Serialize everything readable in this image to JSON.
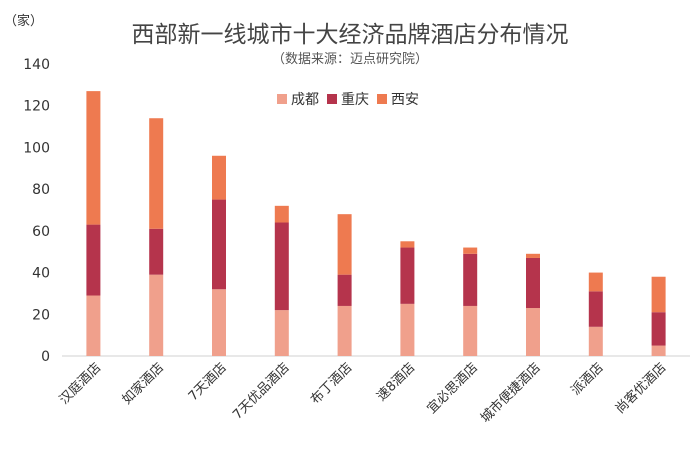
{
  "chart_data": {
    "type": "bar",
    "stacked": true,
    "title": "西部新一线城市十大经济品牌酒店分布情况",
    "subtitle": "（数据来源：迈点研究院）",
    "ylabel": "（家）",
    "xlabel": "",
    "ylim": [
      0,
      140
    ],
    "yticks": [
      0,
      20,
      40,
      60,
      80,
      100,
      120,
      140
    ],
    "grid": false,
    "legend_position": "top-right",
    "categories": [
      "汉庭酒店",
      "如家酒店",
      "7天酒店",
      "7天优品酒店",
      "布丁酒店",
      "速8酒店",
      "宜必思酒店",
      "城市便捷酒店",
      "派酒店",
      "尚客优酒店"
    ],
    "series": [
      {
        "name": "成都",
        "color": "#F0A08C",
        "values": [
          29,
          39,
          32,
          22,
          24,
          25,
          24,
          23,
          14,
          5
        ]
      },
      {
        "name": "重庆",
        "color": "#B5344C",
        "values": [
          34,
          22,
          43,
          42,
          15,
          27,
          25,
          24,
          17,
          16
        ]
      },
      {
        "name": "西安",
        "color": "#EE7A50",
        "values": [
          64,
          53,
          21,
          8,
          29,
          3,
          3,
          2,
          9,
          17
        ]
      }
    ]
  }
}
